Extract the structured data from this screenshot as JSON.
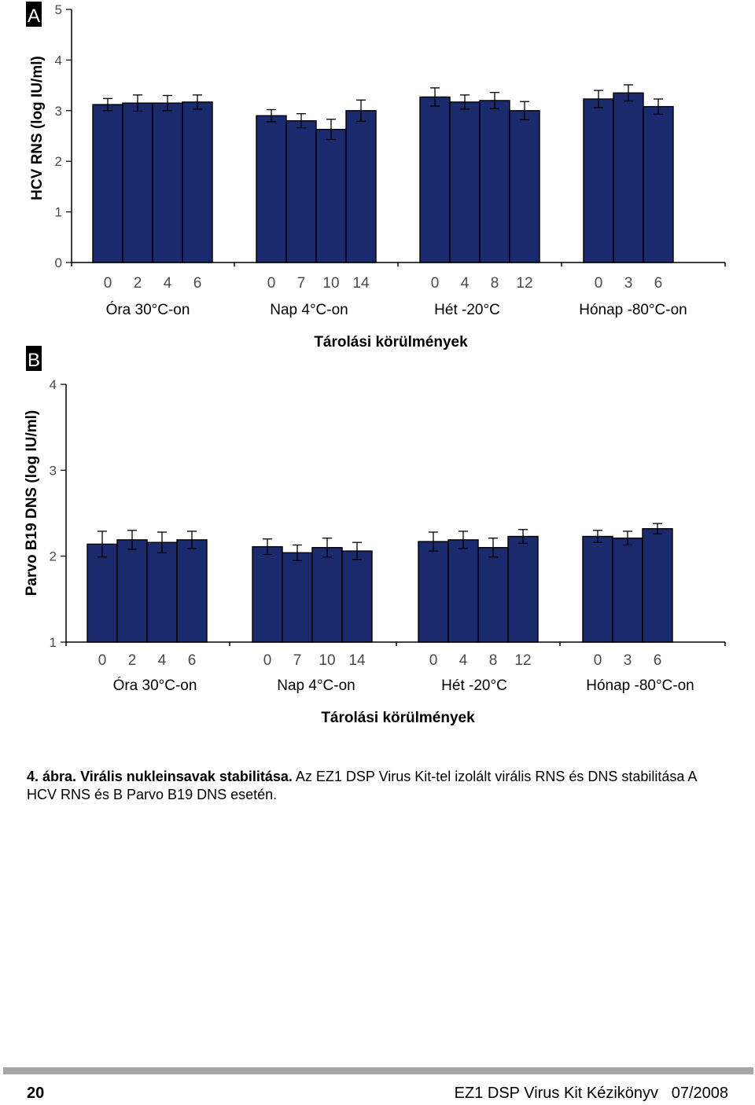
{
  "chart_data": [
    {
      "type": "bar",
      "panel_label": "A",
      "ylabel": "HCV RNS (log IU/ml)",
      "xlabel": "Tárolási körülmények",
      "ylim": [
        0,
        5
      ],
      "yticks": [
        "0",
        "1",
        "2",
        "3",
        "4",
        "5"
      ],
      "groups": [
        {
          "name": "Óra 30°C-on",
          "times": [
            "0",
            "2",
            "4",
            "6"
          ],
          "values": [
            3.12,
            3.15,
            3.15,
            3.17
          ],
          "errors": [
            0.12,
            0.16,
            0.15,
            0.14
          ]
        },
        {
          "name": "Nap 4°C-on",
          "times": [
            "0",
            "7",
            "10",
            "14"
          ],
          "values": [
            2.9,
            2.8,
            2.63,
            3.0
          ],
          "errors": [
            0.12,
            0.14,
            0.2,
            0.21
          ]
        },
        {
          "name": "Hét -20°C",
          "times": [
            "0",
            "4",
            "8",
            "12"
          ],
          "values": [
            3.27,
            3.17,
            3.2,
            3.0
          ],
          "errors": [
            0.18,
            0.14,
            0.16,
            0.18
          ]
        },
        {
          "name": "Hónap -80°C-on",
          "times": [
            "0",
            "3",
            "6"
          ],
          "values": [
            3.23,
            3.35,
            3.08
          ],
          "errors": [
            0.17,
            0.16,
            0.15
          ]
        }
      ]
    },
    {
      "type": "bar",
      "panel_label": "B",
      "ylabel": "Parvo B19 DNS (log IU/ml)",
      "xlabel": "Tárolási körülmények",
      "ylim": [
        1,
        4
      ],
      "yticks": [
        "1",
        "2",
        "3",
        "4"
      ],
      "groups": [
        {
          "name": "Óra 30°C-on",
          "times": [
            "0",
            "2",
            "4",
            "6"
          ],
          "values": [
            2.14,
            2.19,
            2.16,
            2.19
          ],
          "errors": [
            0.15,
            0.11,
            0.12,
            0.1
          ]
        },
        {
          "name": "Nap 4°C-on",
          "times": [
            "0",
            "7",
            "10",
            "14"
          ],
          "values": [
            2.11,
            2.04,
            2.1,
            2.06
          ],
          "errors": [
            0.09,
            0.09,
            0.11,
            0.1
          ]
        },
        {
          "name": "Hét -20°C",
          "times": [
            "0",
            "4",
            "8",
            "12"
          ],
          "values": [
            2.17,
            2.19,
            2.1,
            2.23
          ],
          "errors": [
            0.11,
            0.1,
            0.11,
            0.08
          ]
        },
        {
          "name": "Hónap -80°C-on",
          "times": [
            "0",
            "3",
            "6"
          ],
          "values": [
            2.23,
            2.21,
            2.32
          ],
          "errors": [
            0.07,
            0.08,
            0.06
          ]
        }
      ]
    }
  ],
  "colors": {
    "bar_fill": "#1a2a6c",
    "bar_stroke": "#000000",
    "tick_label": "#4a4a4a",
    "footer_rule": "#a6a6a6"
  },
  "caption": {
    "number": "4. ábra.",
    "title": "Virális nukleinsavak stabilitása.",
    "text": " Az EZ1 DSP Virus Kit-tel izolált virális RNS és DNS stabilitása A HCV RNS és B Parvo B19 DNS esetén."
  },
  "footer": {
    "page_number": "20",
    "title": "EZ1 DSP Virus Kit Kézikönyv   07/2008"
  }
}
